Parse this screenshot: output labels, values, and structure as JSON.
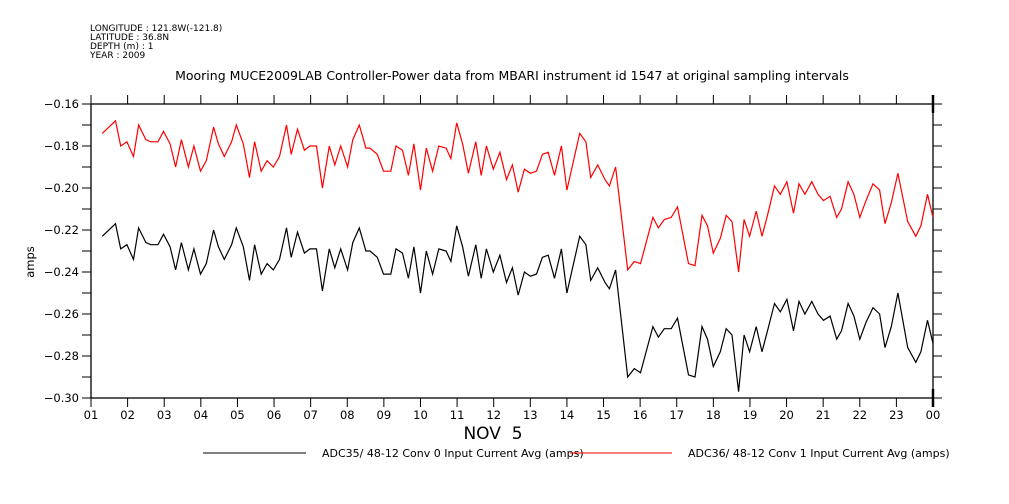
{
  "header": {
    "longitude": "LONGITUDE : 121.8W(-121.8)",
    "latitude": "LATITUDE : 36.8N",
    "depth": "DEPTH (m) : 1",
    "year": "YEAR : 2009"
  },
  "chart_data": {
    "type": "line",
    "title": "Mooring MUCE2009LAB Controller-Power data from MBARI instrument id 1547 at original sampling intervals",
    "xlabel": "NOV  5",
    "ylabel": "amps",
    "xlim": [
      1,
      24
    ],
    "ylim": [
      -0.3,
      -0.16
    ],
    "x_ticks": [
      1,
      2,
      3,
      4,
      5,
      6,
      7,
      8,
      9,
      10,
      11,
      12,
      13,
      14,
      15,
      16,
      17,
      18,
      19,
      20,
      21,
      22,
      23,
      24
    ],
    "x_tick_labels": [
      "01",
      "02",
      "03",
      "04",
      "05",
      "06",
      "07",
      "08",
      "09",
      "10",
      "11",
      "12",
      "13",
      "14",
      "15",
      "16",
      "17",
      "18",
      "19",
      "20",
      "21",
      "22",
      "23",
      "00"
    ],
    "y_ticks": [
      -0.16,
      -0.18,
      -0.2,
      -0.22,
      -0.24,
      -0.26,
      -0.28,
      -0.3
    ],
    "y_tick_labels": [
      "-0.16",
      "-0.18",
      "-0.20",
      "-0.22",
      "-0.24",
      "-0.26",
      "-0.28",
      "-0.30"
    ],
    "grid": false,
    "legend_placement": "bottom",
    "x": [
      1.31,
      1.43,
      1.67,
      1.81,
      1.98,
      2.16,
      2.3,
      2.5,
      2.63,
      2.83,
      2.98,
      3.16,
      3.31,
      3.47,
      3.66,
      3.81,
      3.99,
      4.15,
      4.35,
      4.48,
      4.64,
      4.84,
      4.97,
      5.16,
      5.33,
      5.47,
      5.65,
      5.81,
      5.98,
      6.15,
      6.34,
      6.47,
      6.64,
      6.83,
      6.98,
      7.16,
      7.32,
      7.51,
      7.66,
      7.82,
      8.01,
      8.15,
      8.33,
      8.51,
      8.62,
      8.82,
      8.99,
      9.19,
      9.33,
      9.51,
      9.67,
      9.82,
      10.0,
      10.16,
      10.33,
      10.5,
      10.7,
      10.83,
      10.99,
      11.15,
      11.31,
      11.51,
      11.66,
      11.8,
      11.99,
      12.17,
      12.35,
      12.51,
      12.67,
      12.84,
      13.0,
      13.17,
      13.33,
      13.49,
      13.66,
      13.85,
      14.0,
      14.35,
      14.52,
      14.65,
      14.84,
      15.04,
      15.16,
      15.33,
      15.66,
      15.84,
      16.01,
      16.35,
      16.5,
      16.66,
      16.85,
      17.02,
      17.32,
      17.5,
      17.69,
      17.84,
      18.0,
      18.19,
      18.35,
      18.51,
      18.69,
      18.84,
      18.99,
      19.17,
      19.33,
      19.48,
      19.67,
      19.83,
      20.01,
      20.19,
      20.34,
      20.5,
      20.69,
      20.86,
      21.01,
      21.19,
      21.37,
      21.5,
      21.68,
      21.84,
      22.0,
      22.17,
      22.36,
      22.54,
      22.69,
      22.86,
      23.04,
      23.31,
      23.53,
      23.67,
      23.85,
      24.0
    ],
    "series": [
      {
        "name": "ADC35/ 48-12 Conv 0 Input Current Avg (amps)",
        "color": "#000000",
        "values": [
          -0.223,
          -0.221,
          -0.217,
          -0.229,
          -0.227,
          -0.234,
          -0.219,
          -0.226,
          -0.227,
          -0.227,
          -0.222,
          -0.228,
          -0.239,
          -0.226,
          -0.239,
          -0.229,
          -0.241,
          -0.236,
          -0.22,
          -0.228,
          -0.234,
          -0.227,
          -0.219,
          -0.228,
          -0.244,
          -0.227,
          -0.241,
          -0.236,
          -0.239,
          -0.234,
          -0.219,
          -0.233,
          -0.221,
          -0.231,
          -0.229,
          -0.229,
          -0.249,
          -0.229,
          -0.238,
          -0.229,
          -0.239,
          -0.226,
          -0.219,
          -0.23,
          -0.23,
          -0.233,
          -0.241,
          -0.241,
          -0.229,
          -0.231,
          -0.243,
          -0.228,
          -0.25,
          -0.23,
          -0.241,
          -0.229,
          -0.23,
          -0.235,
          -0.218,
          -0.228,
          -0.242,
          -0.227,
          -0.243,
          -0.229,
          -0.24,
          -0.232,
          -0.245,
          -0.238,
          -0.251,
          -0.24,
          -0.242,
          -0.241,
          -0.233,
          -0.232,
          -0.243,
          -0.229,
          -0.25,
          -0.223,
          -0.227,
          -0.244,
          -0.238,
          -0.245,
          -0.248,
          -0.239,
          -0.29,
          -0.286,
          -0.288,
          -0.266,
          -0.271,
          -0.267,
          -0.267,
          -0.262,
          -0.289,
          -0.29,
          -0.266,
          -0.272,
          -0.285,
          -0.278,
          -0.267,
          -0.27,
          -0.297,
          -0.27,
          -0.278,
          -0.266,
          -0.278,
          -0.268,
          -0.255,
          -0.259,
          -0.253,
          -0.268,
          -0.254,
          -0.26,
          -0.254,
          -0.26,
          -0.263,
          -0.261,
          -0.272,
          -0.268,
          -0.255,
          -0.261,
          -0.272,
          -0.264,
          -0.257,
          -0.26,
          -0.276,
          -0.266,
          -0.25,
          -0.276,
          -0.283,
          -0.278,
          -0.263,
          -0.274
        ]
      },
      {
        "name": "ADC36/ 48-12 Conv 1 Input Current Avg (amps)",
        "color": "#ff0000",
        "values": [
          -0.174,
          -0.172,
          -0.168,
          -0.18,
          -0.178,
          -0.185,
          -0.17,
          -0.177,
          -0.178,
          -0.178,
          -0.173,
          -0.179,
          -0.19,
          -0.177,
          -0.19,
          -0.18,
          -0.192,
          -0.187,
          -0.171,
          -0.179,
          -0.185,
          -0.178,
          -0.17,
          -0.179,
          -0.195,
          -0.178,
          -0.192,
          -0.187,
          -0.19,
          -0.185,
          -0.17,
          -0.184,
          -0.172,
          -0.182,
          -0.18,
          -0.18,
          -0.2,
          -0.18,
          -0.189,
          -0.18,
          -0.19,
          -0.177,
          -0.17,
          -0.181,
          -0.181,
          -0.184,
          -0.192,
          -0.192,
          -0.18,
          -0.182,
          -0.194,
          -0.179,
          -0.201,
          -0.181,
          -0.192,
          -0.18,
          -0.181,
          -0.186,
          -0.169,
          -0.179,
          -0.193,
          -0.178,
          -0.194,
          -0.18,
          -0.191,
          -0.183,
          -0.196,
          -0.189,
          -0.202,
          -0.191,
          -0.193,
          -0.192,
          -0.184,
          -0.183,
          -0.194,
          -0.18,
          -0.201,
          -0.174,
          -0.178,
          -0.195,
          -0.189,
          -0.196,
          -0.199,
          -0.19,
          -0.239,
          -0.235,
          -0.236,
          -0.214,
          -0.219,
          -0.215,
          -0.214,
          -0.209,
          -0.236,
          -0.237,
          -0.213,
          -0.218,
          -0.231,
          -0.224,
          -0.213,
          -0.216,
          -0.24,
          -0.215,
          -0.223,
          -0.211,
          -0.223,
          -0.213,
          -0.199,
          -0.203,
          -0.197,
          -0.212,
          -0.198,
          -0.203,
          -0.197,
          -0.203,
          -0.206,
          -0.204,
          -0.214,
          -0.21,
          -0.197,
          -0.203,
          -0.214,
          -0.206,
          -0.198,
          -0.201,
          -0.217,
          -0.207,
          -0.193,
          -0.216,
          -0.223,
          -0.218,
          -0.203,
          -0.214
        ]
      }
    ]
  }
}
